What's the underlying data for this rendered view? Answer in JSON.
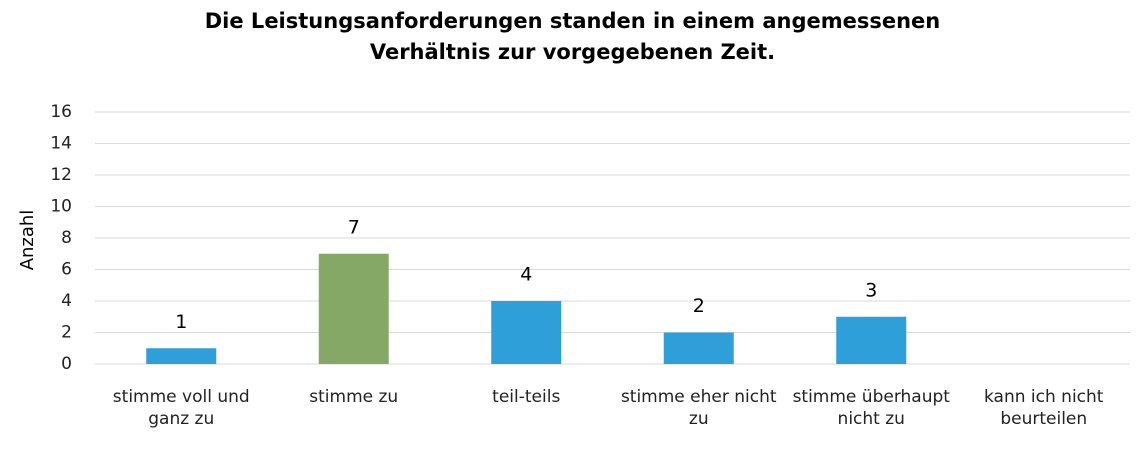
{
  "chart_data": {
    "type": "bar",
    "title": "Die Leistungsanforderungen standen in einem angemessenen Verhältnis zur vorgegebenen Zeit.",
    "y_label": "Anzahl",
    "categories": [
      "stimme voll und ganz zu",
      "stimme zu",
      "teil-teils",
      "stimme eher nicht zu",
      "stimme überhaupt nicht zu",
      "kann ich nicht beurteilen"
    ],
    "values": [
      1,
      7,
      4,
      2,
      3,
      null
    ],
    "colors": [
      "#2e9fd8",
      "#86a866",
      "#2e9fd8",
      "#2e9fd8",
      "#2e9fd8",
      "#2e9fd8"
    ],
    "ylim": [
      0,
      16
    ],
    "yticks": [
      0,
      2,
      4,
      6,
      8,
      10,
      12,
      14,
      16
    ],
    "grid": true
  }
}
